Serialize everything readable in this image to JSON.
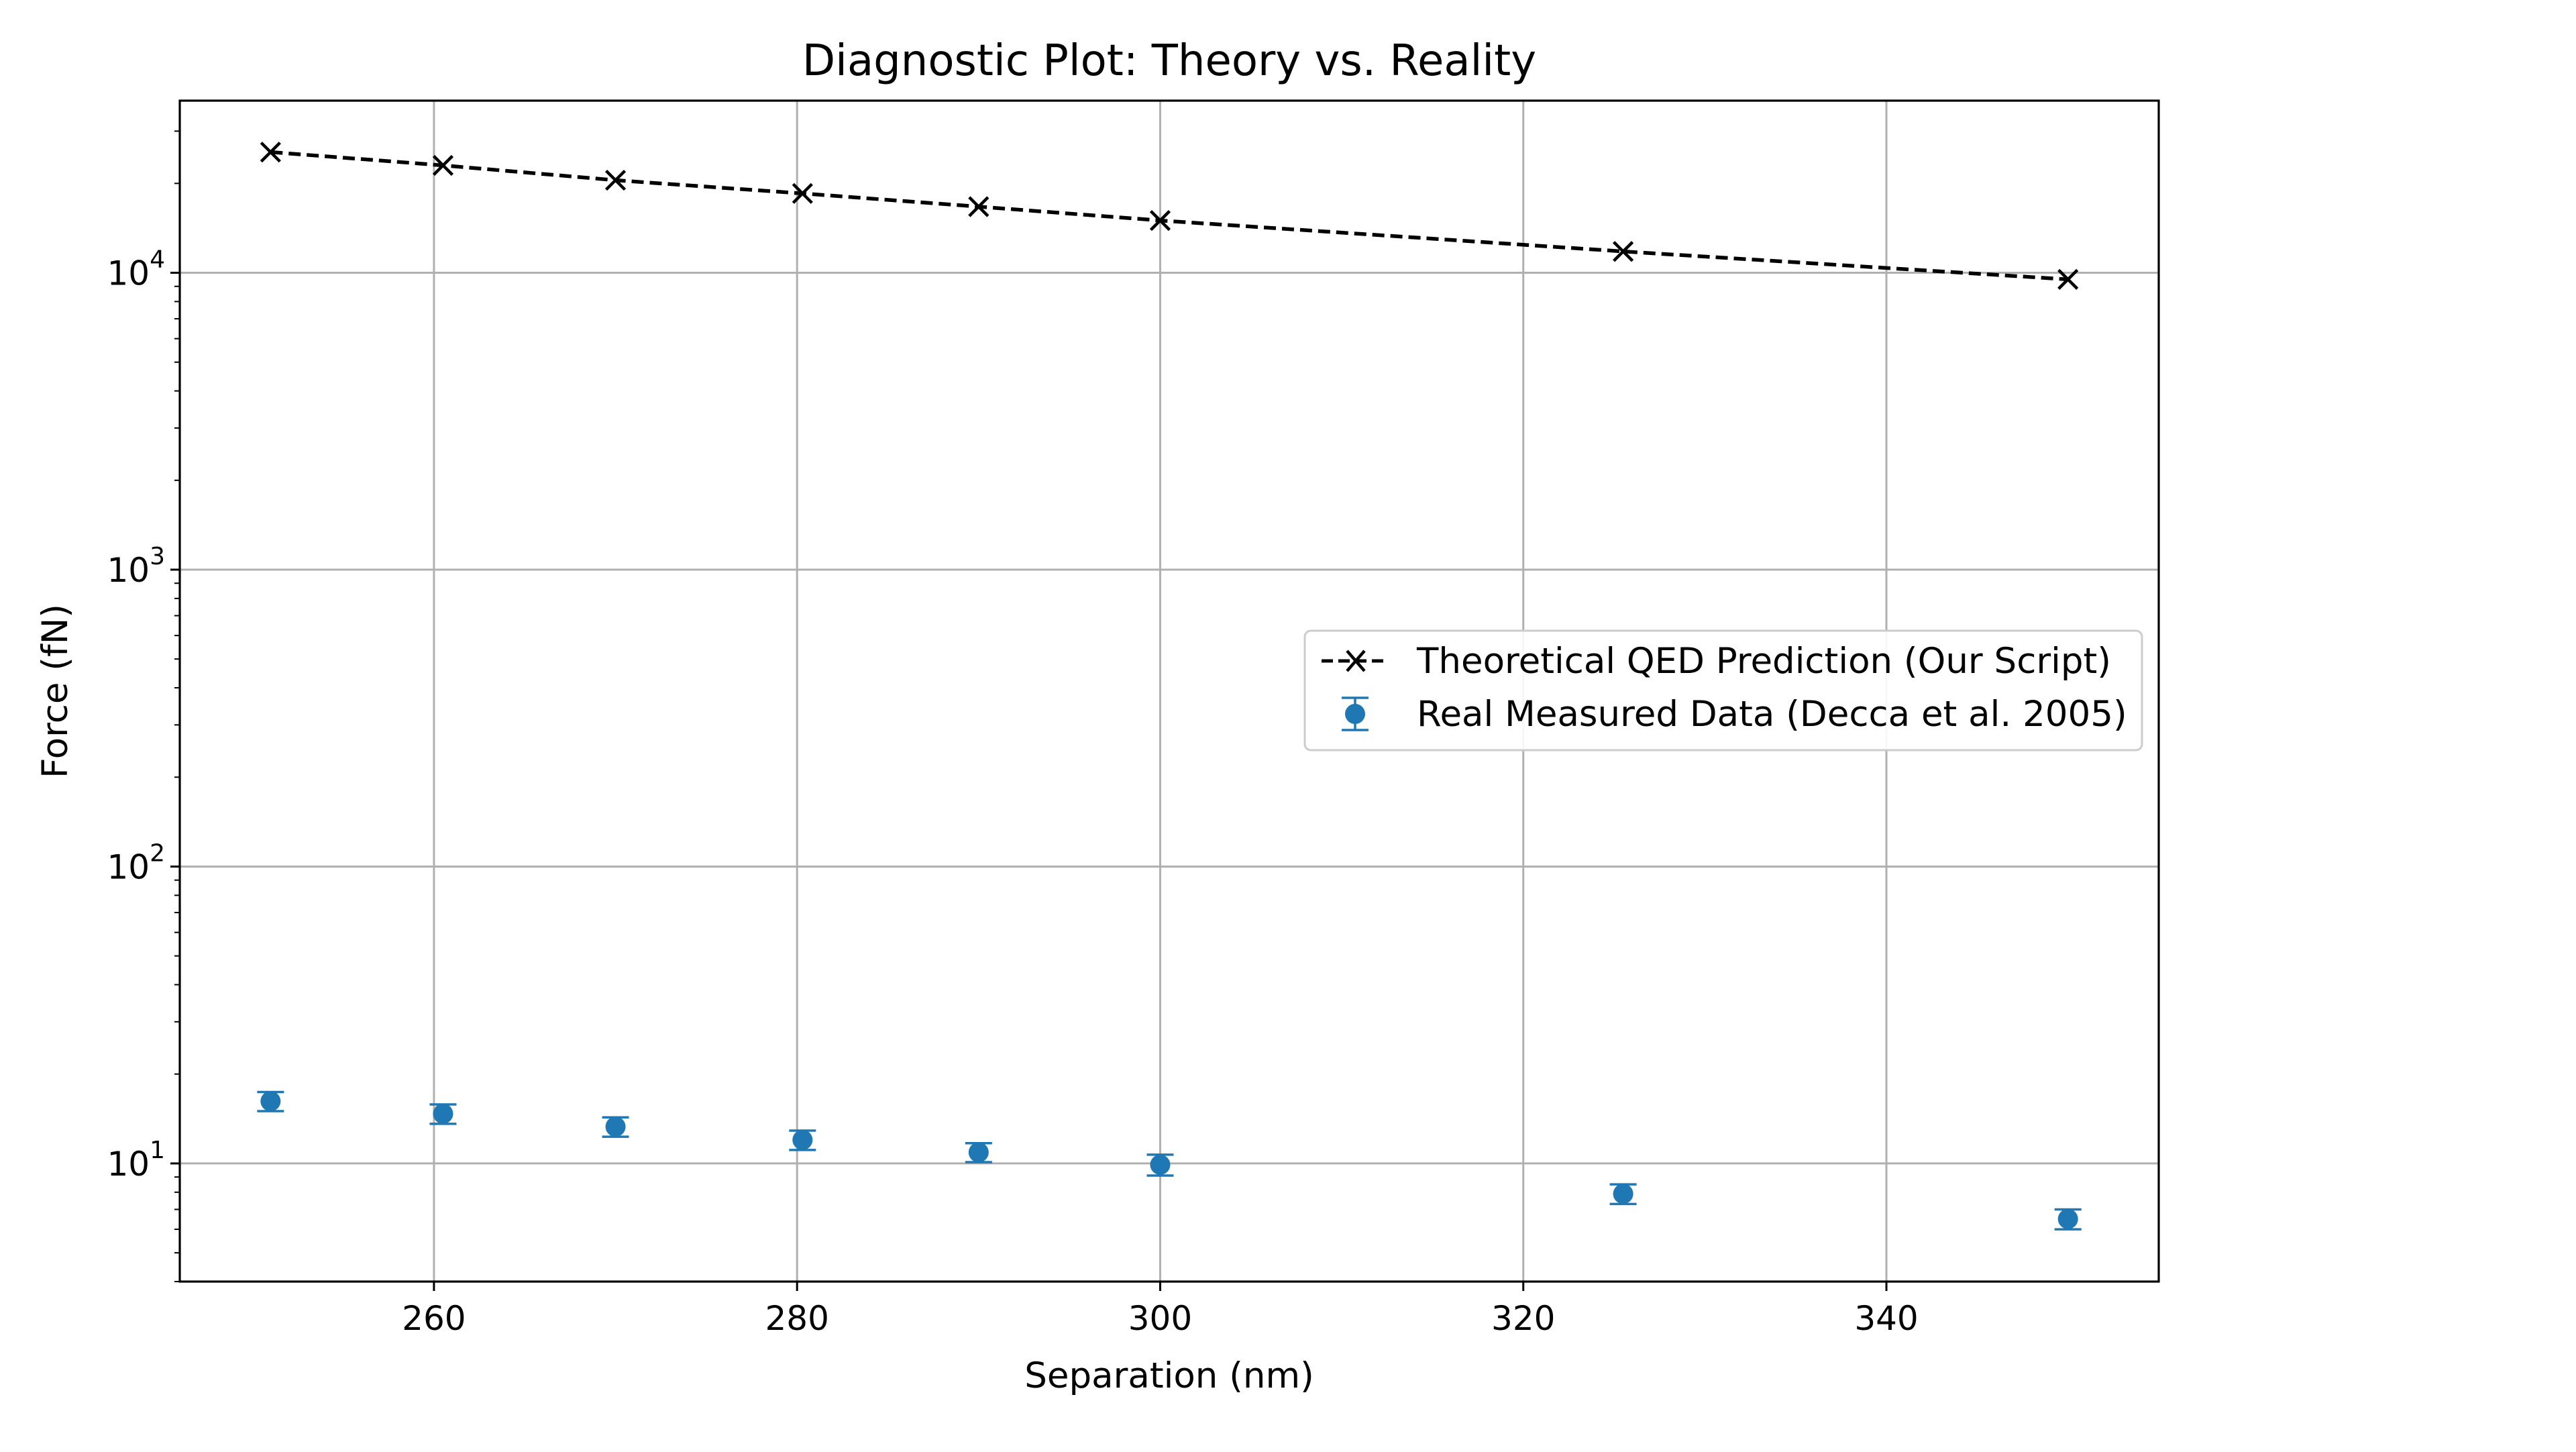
{
  "chart_data": {
    "type": "scatter",
    "title": "Diagnostic Plot: Theory vs. Reality",
    "xlabel": "Separation (nm)",
    "ylabel": "Force (fN)",
    "xlim": [
      246,
      355
    ],
    "ylim": [
      4,
      38000
    ],
    "yscale": "log",
    "grid": true,
    "legend_position": "center-right",
    "x_ticks": [
      260,
      280,
      300,
      320,
      340
    ],
    "y_ticks": [
      {
        "base": "10",
        "exp": "1",
        "value": 10
      },
      {
        "base": "10",
        "exp": "2",
        "value": 100
      },
      {
        "base": "10",
        "exp": "3",
        "value": 1000
      },
      {
        "base": "10",
        "exp": "4",
        "value": 10000
      }
    ],
    "series": [
      {
        "name": "Theoretical QED Prediction (Our Script)",
        "style": "dashed-line-x-marker",
        "color": "#000000",
        "x": [
          251,
          260.5,
          270,
          280.3,
          290,
          300,
          325.5,
          350
        ],
        "y": [
          25500,
          23000,
          20500,
          18500,
          16700,
          15000,
          11800,
          9500
        ]
      },
      {
        "name": "Real Measured Data (Decca et al. 2005)",
        "style": "errorbar-points",
        "color": "#1f77b4",
        "x": [
          251,
          260.5,
          270,
          280.3,
          290,
          300,
          325.5,
          350
        ],
        "y": [
          16.2,
          14.7,
          13.3,
          12.0,
          10.9,
          9.9,
          7.9,
          6.5
        ],
        "yerr": [
          1.2,
          1.1,
          1.0,
          0.9,
          0.8,
          0.8,
          0.6,
          0.5
        ]
      }
    ]
  }
}
